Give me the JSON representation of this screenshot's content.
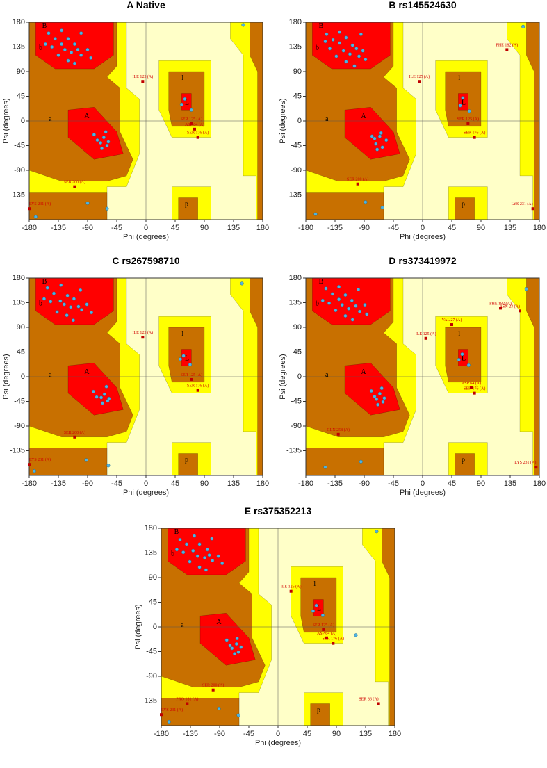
{
  "chart_data": [
    {
      "type": "scatter",
      "title": "A Native",
      "xlabel": "Phi (degrees)",
      "ylabel": "Psi (degrees)",
      "xlim": [
        -180,
        180
      ],
      "ylim": [
        -180,
        180
      ],
      "xticks": [
        -180,
        -135,
        -90,
        -45,
        0,
        45,
        90,
        135,
        180
      ],
      "yticks": [
        -135,
        -90,
        -45,
        0,
        45,
        90,
        135,
        180
      ],
      "color": "#4fb3e0",
      "x": [
        -150,
        -140,
        -130,
        -125,
        -120,
        -115,
        -110,
        -105,
        -100,
        -135,
        -145,
        -90,
        -120,
        -130,
        -100,
        -85,
        -155,
        -110,
        -70,
        -65,
        -60,
        -75,
        -68,
        -62,
        -80,
        -58,
        60,
        70,
        55,
        -90,
        -60,
        -170,
        150
      ],
      "y": [
        160,
        150,
        140,
        130,
        150,
        125,
        140,
        130,
        120,
        120,
        135,
        130,
        110,
        165,
        160,
        115,
        140,
        105,
        -40,
        -30,
        -45,
        -35,
        -50,
        -20,
        -25,
        -38,
        40,
        20,
        30,
        -150,
        -160,
        -175,
        175
      ],
      "labeled_points": [
        {
          "label": "ILE 125 (A)",
          "x": -5,
          "y": 72
        },
        {
          "label": "SER 125 (A)",
          "x": 70,
          "y": -5
        },
        {
          "label": "ASP 64 (A)",
          "x": 75,
          "y": -15
        },
        {
          "label": "SER 176 (A)",
          "x": 80,
          "y": -30
        },
        {
          "label": "SER 200 (A)",
          "x": -110,
          "y": -120
        },
        {
          "label": "LYS 231 (A)",
          "x": -180,
          "y": -160
        }
      ],
      "region_labels": [
        {
          "label": "A",
          "x": -95,
          "y": 5
        },
        {
          "label": "B",
          "x": -160,
          "y": 170
        },
        {
          "label": "b",
          "x": -165,
          "y": 130
        },
        {
          "label": "a",
          "x": -150,
          "y": 0
        },
        {
          "label": "L",
          "x": 60,
          "y": 30
        },
        {
          "label": "l",
          "x": 55,
          "y": 75
        },
        {
          "label": "p",
          "x": 60,
          "y": -155
        }
      ]
    },
    {
      "type": "scatter",
      "title": "B rs145524630",
      "xlabel": "Phi (degrees)",
      "ylabel": "Psi (degrees)",
      "xlim": [
        -180,
        180
      ],
      "ylim": [
        -180,
        180
      ],
      "xticks": [
        -180,
        -135,
        -90,
        -45,
        0,
        45,
        90,
        135,
        180
      ],
      "yticks": [
        -135,
        -90,
        -45,
        0,
        45,
        90,
        135,
        180
      ],
      "color": "#4fb3e0",
      "x": [
        -148,
        -138,
        -128,
        -122,
        -118,
        -112,
        -108,
        -102,
        -98,
        -133,
        -143,
        -92,
        -118,
        -128,
        -95,
        -88,
        -150,
        -105,
        -72,
        -66,
        -62,
        -74,
        -70,
        -64,
        -78,
        -56,
        62,
        72,
        58,
        -88,
        -62,
        -165,
        155
      ],
      "y": [
        158,
        148,
        142,
        128,
        152,
        122,
        138,
        132,
        118,
        118,
        132,
        128,
        108,
        162,
        158,
        112,
        145,
        100,
        -42,
        -28,
        -48,
        -32,
        -52,
        -22,
        -28,
        -35,
        42,
        18,
        28,
        -148,
        -158,
        -170,
        172
      ],
      "labeled_points": [
        {
          "label": "PHE 182 (A)",
          "x": 130,
          "y": 130
        },
        {
          "label": "ILE 125 (A)",
          "x": -5,
          "y": 72
        },
        {
          "label": "SER 125 (A)",
          "x": 70,
          "y": -5
        },
        {
          "label": "SER 176 (A)",
          "x": 80,
          "y": -30
        },
        {
          "label": "SER 200 (A)",
          "x": -100,
          "y": -115
        },
        {
          "label": "LYS 231 (A)",
          "x": 170,
          "y": -160
        }
      ],
      "region_labels": [
        {
          "label": "A",
          "x": -95,
          "y": 5
        },
        {
          "label": "B",
          "x": -160,
          "y": 170
        },
        {
          "label": "b",
          "x": -165,
          "y": 130
        },
        {
          "label": "a",
          "x": -150,
          "y": 0
        },
        {
          "label": "L",
          "x": 60,
          "y": 30
        },
        {
          "label": "l",
          "x": 55,
          "y": 75
        },
        {
          "label": "p",
          "x": 60,
          "y": -155
        }
      ]
    },
    {
      "type": "scatter",
      "title": "C rs267598710",
      "xlabel": "Phi (degrees)",
      "ylabel": "Psi (degrees)",
      "xlim": [
        -180,
        180
      ],
      "ylim": [
        -180,
        180
      ],
      "xticks": [
        -180,
        -135,
        -90,
        -45,
        0,
        45,
        90,
        135,
        180
      ],
      "yticks": [
        -135,
        -90,
        -45,
        0,
        45,
        90,
        135,
        180
      ],
      "color": "#4fb3e0",
      "x": [
        -152,
        -142,
        -132,
        -126,
        -121,
        -116,
        -111,
        -104,
        -99,
        -137,
        -147,
        -91,
        -122,
        -131,
        -101,
        -84,
        -157,
        -112,
        -69,
        -64,
        -59,
        -76,
        -67,
        -61,
        -81,
        -57,
        58,
        68,
        53,
        -92,
        -58,
        -172,
        148
      ],
      "y": [
        162,
        152,
        138,
        132,
        148,
        127,
        142,
        128,
        122,
        118,
        137,
        132,
        112,
        167,
        158,
        117,
        142,
        103,
        -38,
        -32,
        -44,
        -37,
        -48,
        -18,
        -27,
        -40,
        38,
        22,
        32,
        -152,
        -162,
        -172,
        170
      ],
      "labeled_points": [
        {
          "label": "ILE 125 (A)",
          "x": -5,
          "y": 72
        },
        {
          "label": "SER 125 (A)",
          "x": 70,
          "y": -5
        },
        {
          "label": "SER 176 (A)",
          "x": 80,
          "y": -25
        },
        {
          "label": "SER 200 (A)",
          "x": -110,
          "y": -110
        },
        {
          "label": "LYS 231 (A)",
          "x": -180,
          "y": -160
        }
      ],
      "region_labels": [
        {
          "label": "A",
          "x": -95,
          "y": 5
        },
        {
          "label": "B",
          "x": -160,
          "y": 170
        },
        {
          "label": "b",
          "x": -165,
          "y": 130
        },
        {
          "label": "a",
          "x": -150,
          "y": 0
        },
        {
          "label": "L",
          "x": 60,
          "y": 30
        },
        {
          "label": "l",
          "x": 55,
          "y": 75
        },
        {
          "label": "p",
          "x": 60,
          "y": -155
        }
      ]
    },
    {
      "type": "scatter",
      "title": "D rs373419972",
      "xlabel": "Phi (degrees)",
      "ylabel": "Psi (degrees)",
      "xlim": [
        -180,
        180
      ],
      "ylim": [
        -180,
        180
      ],
      "xticks": [
        -180,
        -135,
        -90,
        -45,
        0,
        45,
        90,
        135,
        180
      ],
      "yticks": [
        -135,
        -90,
        -45,
        0,
        45,
        90,
        135,
        180
      ],
      "color": "#4fb3e0",
      "x": [
        -149,
        -139,
        -129,
        -124,
        -119,
        -114,
        -109,
        -103,
        -97,
        -134,
        -144,
        -89,
        -119,
        -129,
        -99,
        -86,
        -154,
        -108,
        -71,
        -66,
        -61,
        -74,
        -69,
        -63,
        -79,
        -59,
        61,
        71,
        56,
        -95,
        -150,
        160
      ],
      "y": [
        161,
        151,
        141,
        131,
        149,
        124,
        139,
        129,
        119,
        121,
        134,
        131,
        111,
        164,
        159,
        114,
        139,
        104,
        -41,
        -31,
        -46,
        -36,
        -51,
        -21,
        -26,
        -39,
        41,
        21,
        31,
        -155,
        -165,
        160
      ],
      "labeled_points": [
        {
          "label": "PHE 182 (A)",
          "x": 120,
          "y": 125
        },
        {
          "label": "ASN 23 (A)",
          "x": 150,
          "y": 120
        },
        {
          "label": "VAL 27 (A)",
          "x": 45,
          "y": 95
        },
        {
          "label": "ILE 125 (A)",
          "x": 5,
          "y": 70
        },
        {
          "label": "ASP 64 (A)",
          "x": 75,
          "y": -20
        },
        {
          "label": "SER 176 (A)",
          "x": 80,
          "y": -30
        },
        {
          "label": "GLN 258 (A)",
          "x": -130,
          "y": -105
        },
        {
          "label": "LYS 231 (A)",
          "x": 175,
          "y": -165
        }
      ],
      "region_labels": [
        {
          "label": "A",
          "x": -95,
          "y": 5
        },
        {
          "label": "B",
          "x": -160,
          "y": 170
        },
        {
          "label": "b",
          "x": -165,
          "y": 130
        },
        {
          "label": "a",
          "x": -150,
          "y": 0
        },
        {
          "label": "L",
          "x": 60,
          "y": 30
        },
        {
          "label": "l",
          "x": 55,
          "y": 75
        },
        {
          "label": "p",
          "x": 60,
          "y": -155
        }
      ]
    },
    {
      "type": "scatter",
      "title": "E rs375352213",
      "xlabel": "Phi (degrees)",
      "ylabel": "Psi (degrees)",
      "xlim": [
        -180,
        180
      ],
      "ylim": [
        -180,
        180
      ],
      "xticks": [
        -180,
        -135,
        -90,
        -45,
        0,
        45,
        90,
        135,
        180
      ],
      "yticks": [
        -135,
        -90,
        -45,
        0,
        45,
        90,
        135,
        180
      ],
      "color": "#4fb3e0",
      "x": [
        -151,
        -141,
        -131,
        -124,
        -121,
        -113,
        -109,
        -106,
        -101,
        -136,
        -146,
        -92,
        -121,
        -129,
        -102,
        -86,
        -156,
        -111,
        -71,
        -64,
        -61,
        -74,
        -67,
        -63,
        -79,
        -57,
        59,
        69,
        54,
        -91,
        -61,
        -168,
        152,
        120
      ],
      "y": [
        159,
        151,
        139,
        129,
        151,
        126,
        141,
        131,
        121,
        119,
        136,
        129,
        109,
        166,
        161,
        116,
        141,
        104,
        -39,
        -31,
        -46,
        -34,
        -49,
        -21,
        -24,
        -37,
        39,
        21,
        29,
        -149,
        -161,
        -173,
        174,
        -15
      ],
      "labeled_points": [
        {
          "label": "ILE 125 (A)",
          "x": 20,
          "y": 65
        },
        {
          "label": "SER 125 (A)",
          "x": 70,
          "y": -5
        },
        {
          "label": "ASP 64 (A)",
          "x": 75,
          "y": -20
        },
        {
          "label": "SER 176 (A)",
          "x": 85,
          "y": -30
        },
        {
          "label": "SER 200 (A)",
          "x": -100,
          "y": -115
        },
        {
          "label": "PRO 181 (A)",
          "x": -140,
          "y": -140
        },
        {
          "label": "LYS 231 (A)",
          "x": -180,
          "y": -160
        },
        {
          "label": "SER 86 (A)",
          "x": 155,
          "y": -140
        }
      ],
      "region_labels": [
        {
          "label": "A",
          "x": -95,
          "y": 5
        },
        {
          "label": "B",
          "x": -160,
          "y": 170
        },
        {
          "label": "b",
          "x": -165,
          "y": 130
        },
        {
          "label": "a",
          "x": -150,
          "y": 0
        },
        {
          "label": "L",
          "x": 60,
          "y": 30
        },
        {
          "label": "l",
          "x": 55,
          "y": 75
        },
        {
          "label": "p",
          "x": 60,
          "y": -155
        }
      ]
    }
  ]
}
